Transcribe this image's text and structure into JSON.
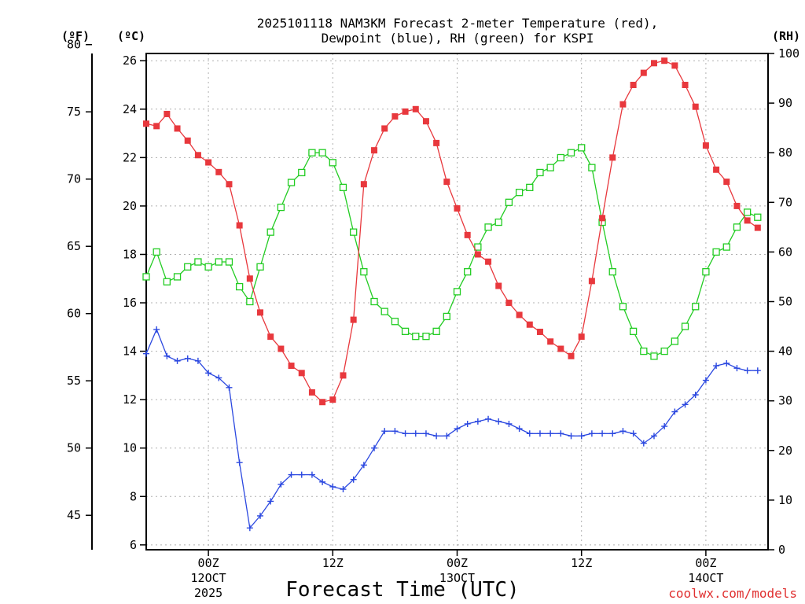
{
  "chart_data": {
    "type": "line",
    "title_line1": "2025101118 NAM3KM Forecast 2-meter Temperature (red),",
    "title_line2": "Dewpoint (blue), RH (green) for KSPI",
    "xlabel": "Forecast Time (UTC)",
    "credit": "coolwx.com/models",
    "units": {
      "fahrenheit": "(ºF)",
      "celsius": "(ºC)",
      "rh": "(RH)"
    },
    "x_range_hours": [
      0,
      60
    ],
    "x_ticks": [
      {
        "hour": 6,
        "line1": "00Z",
        "line2": "12OCT",
        "line3": "2025"
      },
      {
        "hour": 18,
        "line1": "12Z",
        "line2": "",
        "line3": ""
      },
      {
        "hour": 30,
        "line1": "00Z",
        "line2": "13OCT",
        "line3": ""
      },
      {
        "hour": 42,
        "line1": "12Z",
        "line2": "",
        "line3": ""
      },
      {
        "hour": 54,
        "line1": "00Z",
        "line2": "14OCT",
        "line3": ""
      }
    ],
    "celsius_axis": {
      "range": [
        5.8,
        26.3
      ],
      "ticks": [
        "6",
        "8",
        "10",
        "12",
        "14",
        "16",
        "18",
        "20",
        "22",
        "24",
        "26"
      ]
    },
    "fahrenheit_axis": {
      "ticks": [
        "45",
        "50",
        "55",
        "60",
        "65",
        "70",
        "75",
        "80"
      ]
    },
    "rh_axis": {
      "range": [
        0,
        100
      ],
      "ticks": [
        "0",
        "10",
        "20",
        "30",
        "40",
        "50",
        "60",
        "70",
        "80",
        "90",
        "100"
      ]
    },
    "series": [
      {
        "name": "Temperature",
        "units": "degC",
        "color": "#e8383d",
        "marker": "filled-square",
        "values": [
          23.4,
          23.3,
          23.8,
          23.2,
          22.7,
          22.1,
          21.8,
          21.4,
          20.9,
          19.2,
          17.0,
          15.6,
          14.6,
          14.1,
          13.4,
          13.1,
          12.3,
          11.9,
          12.0,
          13.0,
          15.3,
          20.9,
          22.3,
          23.2,
          23.7,
          23.9,
          24.0,
          23.5,
          22.6,
          21.0,
          19.9,
          18.8,
          18.0,
          17.7,
          16.7,
          16.0,
          15.5,
          15.1,
          14.8,
          14.4,
          14.1,
          13.8,
          14.6,
          16.9,
          19.5,
          22.0,
          24.2,
          25.0,
          25.5,
          25.9,
          26.0,
          25.8,
          25.0,
          24.1,
          22.5,
          21.5,
          21.0,
          20.0,
          19.4,
          19.1
        ]
      },
      {
        "name": "Dewpoint",
        "units": "degC",
        "color": "#2b48e0",
        "marker": "plus",
        "values": [
          13.9,
          14.9,
          13.8,
          13.6,
          13.7,
          13.6,
          13.1,
          12.9,
          12.5,
          9.4,
          6.7,
          7.2,
          7.8,
          8.5,
          8.9,
          8.9,
          8.9,
          8.6,
          8.4,
          8.3,
          8.7,
          9.3,
          10.0,
          10.7,
          10.7,
          10.6,
          10.6,
          10.6,
          10.5,
          10.5,
          10.8,
          11.0,
          11.1,
          11.2,
          11.1,
          11.0,
          10.8,
          10.6,
          10.6,
          10.6,
          10.6,
          10.5,
          10.5,
          10.6,
          10.6,
          10.6,
          10.7,
          10.6,
          10.2,
          10.5,
          10.9,
          11.5,
          11.8,
          12.2,
          12.8,
          13.4,
          13.5,
          13.3,
          13.2,
          13.2
        ]
      },
      {
        "name": "RH",
        "units": "percent",
        "color": "#22cc22",
        "marker": "open-square",
        "values": [
          55,
          60,
          54,
          55,
          57,
          58,
          57,
          58,
          58,
          53,
          50,
          57,
          64,
          69,
          74,
          76,
          80,
          80,
          78,
          73,
          64,
          56,
          50,
          48,
          46,
          44,
          43,
          43,
          44,
          47,
          52,
          56,
          61,
          65,
          66,
          70,
          72,
          73,
          76,
          77,
          79,
          80,
          81,
          77,
          66,
          56,
          49,
          44,
          40,
          39,
          40,
          42,
          45,
          49,
          56,
          60,
          61,
          65,
          68,
          67
        ]
      }
    ]
  }
}
